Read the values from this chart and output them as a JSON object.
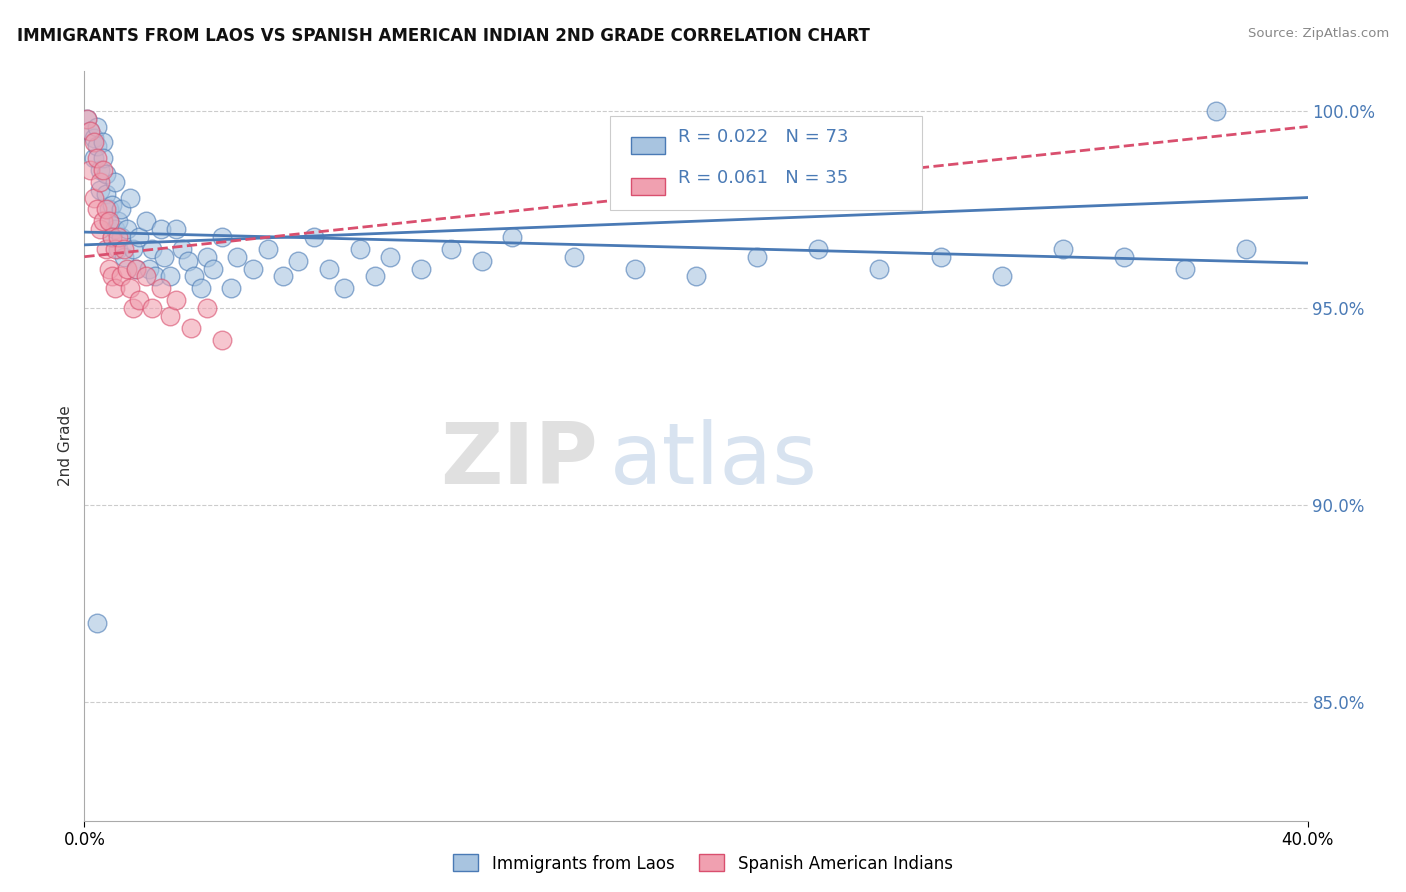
{
  "title": "IMMIGRANTS FROM LAOS VS SPANISH AMERICAN INDIAN 2ND GRADE CORRELATION CHART",
  "source": "Source: ZipAtlas.com",
  "ylabel": "2nd Grade",
  "xmin": 0.0,
  "xmax": 0.4,
  "ymin": 0.82,
  "ymax": 1.01,
  "yticks": [
    0.85,
    0.9,
    0.95,
    1.0
  ],
  "ytick_labels": [
    "85.0%",
    "90.0%",
    "95.0%",
    "100.0%"
  ],
  "legend_r1": "R = 0.022",
  "legend_n1": "N = 73",
  "legend_r2": "R = 0.061",
  "legend_n2": "N = 35",
  "blue_color": "#a8c4e0",
  "pink_color": "#f0a0b0",
  "trendline_blue": "#4a7ab5",
  "trendline_pink": "#d94f6e",
  "watermark_zip": "ZIP",
  "watermark_atlas": "atlas",
  "blue_scatter": [
    [
      0.001,
      0.998
    ],
    [
      0.002,
      0.995
    ],
    [
      0.003,
      0.993
    ],
    [
      0.003,
      0.988
    ],
    [
      0.004,
      0.996
    ],
    [
      0.004,
      0.991
    ],
    [
      0.005,
      0.985
    ],
    [
      0.005,
      0.98
    ],
    [
      0.006,
      0.992
    ],
    [
      0.006,
      0.988
    ],
    [
      0.007,
      0.984
    ],
    [
      0.007,
      0.979
    ],
    [
      0.008,
      0.975
    ],
    [
      0.008,
      0.972
    ],
    [
      0.009,
      0.968
    ],
    [
      0.009,
      0.976
    ],
    [
      0.01,
      0.982
    ],
    [
      0.01,
      0.97
    ],
    [
      0.011,
      0.965
    ],
    [
      0.011,
      0.972
    ],
    [
      0.012,
      0.968
    ],
    [
      0.012,
      0.975
    ],
    [
      0.013,
      0.963
    ],
    [
      0.014,
      0.97
    ],
    [
      0.015,
      0.978
    ],
    [
      0.016,
      0.965
    ],
    [
      0.017,
      0.96
    ],
    [
      0.018,
      0.968
    ],
    [
      0.02,
      0.972
    ],
    [
      0.021,
      0.96
    ],
    [
      0.022,
      0.965
    ],
    [
      0.023,
      0.958
    ],
    [
      0.025,
      0.97
    ],
    [
      0.026,
      0.963
    ],
    [
      0.028,
      0.958
    ],
    [
      0.03,
      0.97
    ],
    [
      0.032,
      0.965
    ],
    [
      0.034,
      0.962
    ],
    [
      0.036,
      0.958
    ],
    [
      0.038,
      0.955
    ],
    [
      0.04,
      0.963
    ],
    [
      0.042,
      0.96
    ],
    [
      0.045,
      0.968
    ],
    [
      0.048,
      0.955
    ],
    [
      0.05,
      0.963
    ],
    [
      0.055,
      0.96
    ],
    [
      0.06,
      0.965
    ],
    [
      0.065,
      0.958
    ],
    [
      0.07,
      0.962
    ],
    [
      0.075,
      0.968
    ],
    [
      0.08,
      0.96
    ],
    [
      0.085,
      0.955
    ],
    [
      0.09,
      0.965
    ],
    [
      0.095,
      0.958
    ],
    [
      0.1,
      0.963
    ],
    [
      0.11,
      0.96
    ],
    [
      0.12,
      0.965
    ],
    [
      0.13,
      0.962
    ],
    [
      0.14,
      0.968
    ],
    [
      0.16,
      0.963
    ],
    [
      0.18,
      0.96
    ],
    [
      0.2,
      0.958
    ],
    [
      0.22,
      0.963
    ],
    [
      0.24,
      0.965
    ],
    [
      0.26,
      0.96
    ],
    [
      0.28,
      0.963
    ],
    [
      0.3,
      0.958
    ],
    [
      0.32,
      0.965
    ],
    [
      0.34,
      0.963
    ],
    [
      0.36,
      0.96
    ],
    [
      0.38,
      0.965
    ],
    [
      0.004,
      0.87
    ],
    [
      0.37,
      1.0
    ]
  ],
  "pink_scatter": [
    [
      0.001,
      0.998
    ],
    [
      0.002,
      0.995
    ],
    [
      0.002,
      0.985
    ],
    [
      0.003,
      0.992
    ],
    [
      0.003,
      0.978
    ],
    [
      0.004,
      0.988
    ],
    [
      0.004,
      0.975
    ],
    [
      0.005,
      0.982
    ],
    [
      0.005,
      0.97
    ],
    [
      0.006,
      0.985
    ],
    [
      0.006,
      0.972
    ],
    [
      0.007,
      0.975
    ],
    [
      0.007,
      0.965
    ],
    [
      0.008,
      0.972
    ],
    [
      0.008,
      0.96
    ],
    [
      0.009,
      0.968
    ],
    [
      0.009,
      0.958
    ],
    [
      0.01,
      0.965
    ],
    [
      0.01,
      0.955
    ],
    [
      0.011,
      0.968
    ],
    [
      0.012,
      0.958
    ],
    [
      0.013,
      0.965
    ],
    [
      0.014,
      0.96
    ],
    [
      0.015,
      0.955
    ],
    [
      0.016,
      0.95
    ],
    [
      0.017,
      0.96
    ],
    [
      0.018,
      0.952
    ],
    [
      0.02,
      0.958
    ],
    [
      0.022,
      0.95
    ],
    [
      0.025,
      0.955
    ],
    [
      0.028,
      0.948
    ],
    [
      0.03,
      0.952
    ],
    [
      0.035,
      0.945
    ],
    [
      0.04,
      0.95
    ],
    [
      0.045,
      0.942
    ]
  ]
}
